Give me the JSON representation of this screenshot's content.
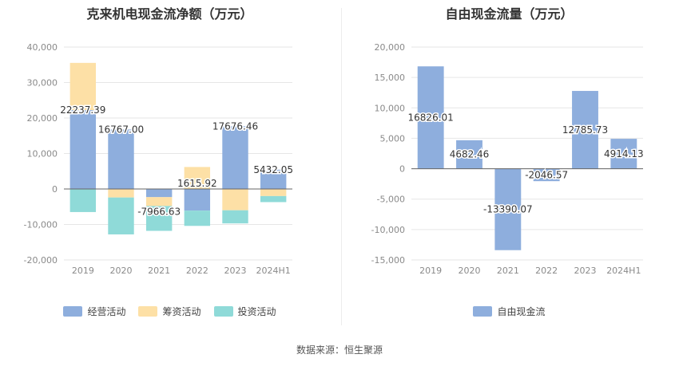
{
  "source": "数据来源：恒生聚源",
  "chart_data": [
    {
      "type": "bar",
      "stacked": true,
      "title": "克来机电现金流净额（万元）",
      "categories": [
        "2019",
        "2020",
        "2021",
        "2022",
        "2023",
        "2024H1"
      ],
      "ylim": [
        -20000,
        40000
      ],
      "yticks": [
        40000,
        30000,
        20000,
        10000,
        0,
        -10000,
        -20000
      ],
      "ytick_labels": [
        "40,000",
        "30,000",
        "20,000",
        "10,000",
        "0",
        "-10,000",
        "-20,000"
      ],
      "grid": true,
      "legend_position": "bottom",
      "series": [
        {
          "name": "经营活动",
          "color": "#8eaedd",
          "values": [
            22237.39,
            16767.0,
            -2300,
            -6100,
            17676.46,
            5432.05
          ]
        },
        {
          "name": "筹资活动",
          "color": "#fde0a6",
          "values": [
            13300,
            -2400,
            -2500,
            6200,
            -6000,
            -2000
          ]
        },
        {
          "name": "投资活动",
          "color": "#8fdad8",
          "values": [
            -6500,
            -10400,
            -7000,
            -4300,
            -3700,
            -1700
          ]
        }
      ],
      "net_labels": [
        "22237.39",
        "16767.00",
        "-7966.63",
        "1615.92",
        "17676.46",
        "5432.05"
      ],
      "net_values": [
        22237.39,
        16767.0,
        -7966.63,
        1615.92,
        17676.46,
        5432.05
      ]
    },
    {
      "type": "bar",
      "title": "自由现金流量（万元）",
      "categories": [
        "2019",
        "2020",
        "2021",
        "2022",
        "2023",
        "2024H1"
      ],
      "ylim": [
        -15000,
        20000
      ],
      "yticks": [
        20000,
        15000,
        10000,
        5000,
        0,
        -5000,
        -10000,
        -15000
      ],
      "ytick_labels": [
        "20,000",
        "15,000",
        "10,000",
        "5,000",
        "0",
        "-5,000",
        "-10,000",
        "-15,000"
      ],
      "grid": true,
      "legend_position": "bottom",
      "series": [
        {
          "name": "自由现金流",
          "color": "#8eaedd",
          "values": [
            16826.01,
            4682.46,
            -13390.07,
            -2046.57,
            12785.73,
            4914.13
          ]
        }
      ],
      "value_labels": [
        "16826.01",
        "4682.46",
        "-13390.07",
        "-2046.57",
        "12785.73",
        "4914.13"
      ]
    }
  ]
}
